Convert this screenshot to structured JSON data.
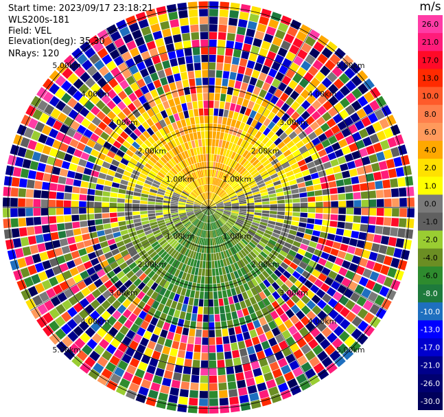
{
  "header": {
    "start_time": "Start time: 2023/09/17 23:18:21",
    "instrument": "WLS200s-181",
    "field": "Field: VEL",
    "elevation": "Elevation(deg): 35.30",
    "nrays": "NRays: 120"
  },
  "colorbar": {
    "unit": "m/s",
    "ticks": [
      "26.0",
      "21.0",
      "17.0",
      "13.0",
      "10.0",
      "8.0",
      "6.0",
      "4.0",
      "2.0",
      "1.0",
      "0.0",
      "-1.0",
      "-2.0",
      "-4.0",
      "-6.0",
      "-8.0",
      "-10.0",
      "-13.0",
      "-17.0",
      "-21.0",
      "-26.0",
      "-30.0"
    ],
    "colors": [
      "#ff3ca6",
      "#ff1c7a",
      "#ff0a28",
      "#ff2a00",
      "#ff5a2a",
      "#ff7f4c",
      "#ff9a5c",
      "#ffa800",
      "#ffe100",
      "#ffff00",
      "#7a7a7a",
      "#606060",
      "#9acd32",
      "#6b8e23",
      "#2e8b2e",
      "#1e7a3c",
      "#1e6fbf",
      "#0000ff",
      "#0000cd",
      "#00008b",
      "#000070",
      "#00005a"
    ]
  },
  "chart_data": {
    "type": "ppi",
    "field": "VEL",
    "units": "m/s",
    "n_rays": 120,
    "elevation_deg": 35.3,
    "range_rings_km": [
      1,
      2,
      3,
      4,
      5
    ],
    "ring_labels": [
      "1.00km",
      "2.00km",
      "3.00km",
      "4.00km",
      "5.00km"
    ],
    "vmin": -30.0,
    "vmax": 30.0,
    "pattern": {
      "north_half_near_range": "positive velocities 1 to 6 m/s (yellow/orange)",
      "south_half_near_range": "negative velocities -1 to -8 m/s (green)",
      "east_west_axis": "about 0 m/s (gray)",
      "outer_ranges": "noise across full color scale"
    }
  }
}
